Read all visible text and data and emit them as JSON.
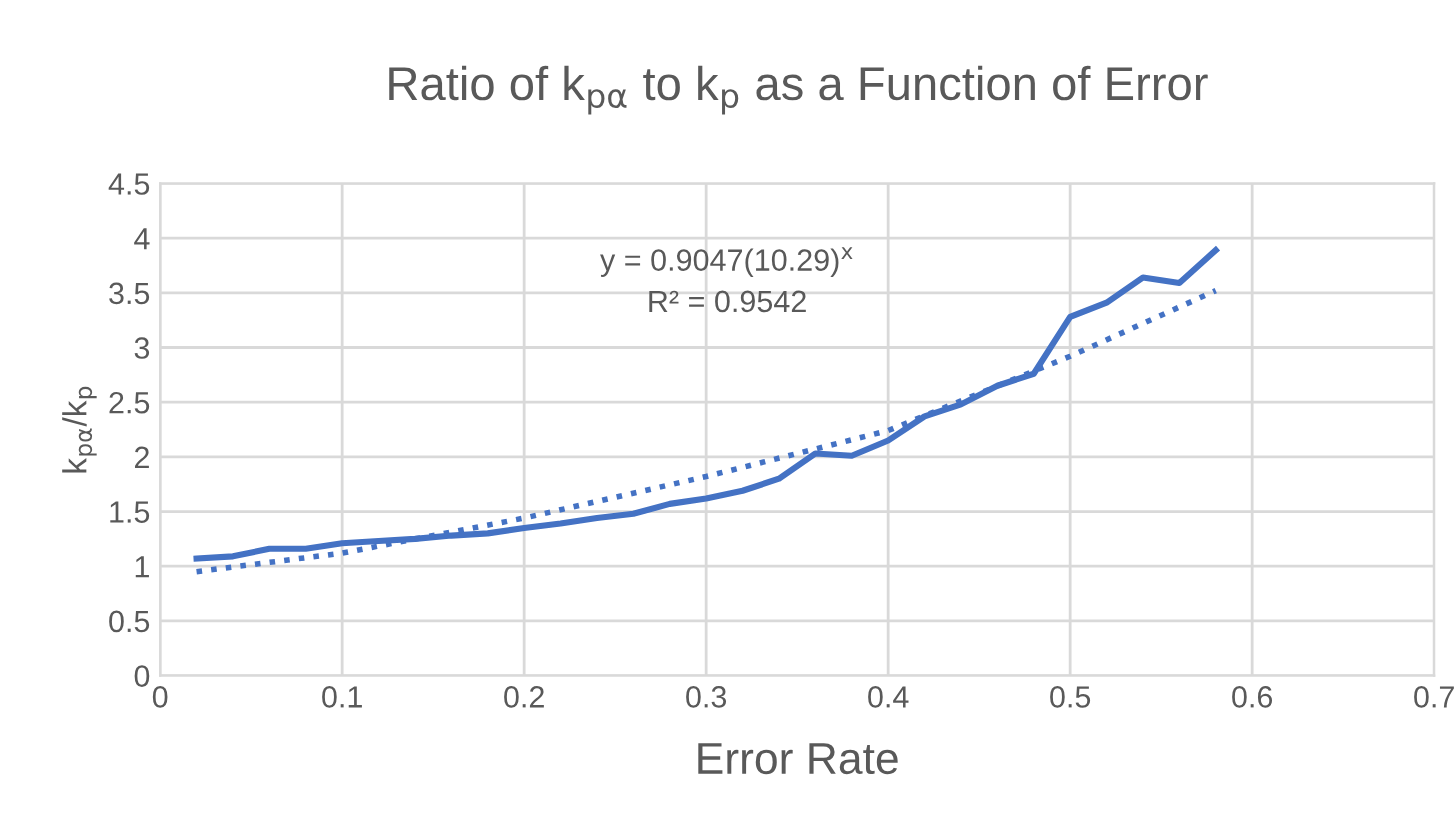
{
  "chart_data": {
    "type": "line",
    "title": "Ratio of k$_{pα}$ to k$_{p}$ as a Function of Error",
    "xlabel": "Error Rate",
    "ylabel": "k$_{pα}$/k$_{p}$",
    "x": [
      0.02,
      0.04,
      0.06,
      0.08,
      0.1,
      0.12,
      0.14,
      0.16,
      0.18,
      0.2,
      0.22,
      0.24,
      0.26,
      0.28,
      0.3,
      0.32,
      0.34,
      0.36,
      0.38,
      0.4,
      0.42,
      0.44,
      0.46,
      0.48,
      0.5,
      0.52,
      0.54,
      0.56,
      0.58
    ],
    "series": [
      {
        "color": "#4472c4",
        "line_style": "solid",
        "values": [
          1.07,
          1.09,
          1.16,
          1.16,
          1.21,
          1.23,
          1.25,
          1.28,
          1.3,
          1.35,
          1.39,
          1.44,
          1.48,
          1.57,
          1.62,
          1.69,
          1.8,
          2.03,
          2.01,
          2.15,
          2.37,
          2.48,
          2.65,
          2.76,
          3.28,
          3.41,
          3.64,
          3.59,
          3.89
        ]
      },
      {
        "type": "line",
        "color": "#4472c4",
        "line_style": "dotted",
        "x": [
          0.02,
          0.1,
          0.2,
          0.3,
          0.4,
          0.45,
          0.5,
          0.58
        ],
        "values": [
          0.95,
          1.12,
          1.44,
          1.82,
          2.24,
          2.58,
          2.92,
          3.52
        ]
      }
    ],
    "annotations": [
      "y = 0.9047(10.29)$^{x}$",
      "R² = 0.9542"
    ],
    "xlim": [
      0,
      0.7
    ],
    "xticks": [
      0,
      0.1,
      0.2,
      0.3,
      0.4,
      0.5,
      0.6,
      0.7
    ],
    "ylim": [
      0,
      4.5
    ],
    "yticks": [
      0,
      0.5,
      1,
      1.5,
      2,
      2.5,
      3,
      3.5,
      4,
      4.5
    ],
    "grid": true,
    "legend": false,
    "marker": "none"
  }
}
